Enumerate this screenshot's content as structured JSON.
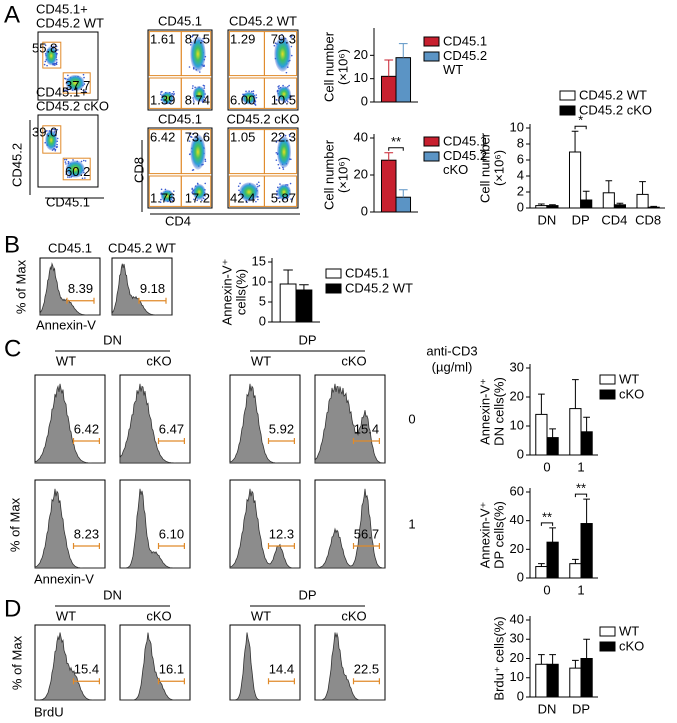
{
  "panel_labels": [
    "A",
    "B",
    "C",
    "D"
  ],
  "flow": {
    "a_left": {
      "x_label": "CD45.1",
      "y_label": "CD45.2",
      "plots": [
        {
          "title": [
            "CD45.1+",
            "CD45.2 WT"
          ],
          "gates": [
            "55.8",
            "37.7"
          ]
        },
        {
          "title": [
            "CD45.1+",
            "CD45.2 cKO"
          ],
          "gates": [
            "39.0",
            "60.2"
          ]
        }
      ]
    },
    "a_mid": {
      "x_label": "CD4",
      "y_label": "CD8",
      "plots": [
        {
          "title": "CD45.1",
          "gates": [
            "1.61",
            "87.5",
            "1.39",
            "8.74"
          ]
        },
        {
          "title": "CD45.2 WT",
          "gates": [
            "1.29",
            "79.3",
            "6.00",
            "10.5"
          ]
        },
        {
          "title": "CD45.1",
          "gates": [
            "6.42",
            "73.6",
            "1.76",
            "17.2"
          ]
        },
        {
          "title": "CD45.2 cKO",
          "gates": [
            "1.05",
            "22.3",
            "42.4",
            "5.87"
          ]
        }
      ]
    },
    "b": {
      "x_label": "Annexin-V",
      "y_label": "% of Max",
      "plots": [
        {
          "title": "CD45.1",
          "gate": "8.39"
        },
        {
          "title": "CD45.2 WT",
          "gate": "9.18"
        }
      ]
    },
    "c": {
      "x_label": "Annexin-V",
      "y_label": "% of Max",
      "groups": [
        "DN",
        "DP"
      ],
      "columns": [
        "WT",
        "cKO",
        "WT",
        "cKO"
      ],
      "dose_title": [
        "anti-CD3",
        "(µg/ml)"
      ],
      "doses": [
        "0",
        "1"
      ],
      "gates": [
        [
          "6.42",
          "6.47",
          "5.92",
          "15.4"
        ],
        [
          "8.23",
          "6.10",
          "12.3",
          "56.7"
        ]
      ]
    },
    "d": {
      "x_label": "BrdU",
      "y_label": "% of Max",
      "groups": [
        "DN",
        "DP"
      ],
      "columns": [
        "WT",
        "cKO",
        "WT",
        "cKO"
      ],
      "gates": [
        "15.4",
        "16.1",
        "14.4",
        "22.5"
      ]
    }
  },
  "chart_data": [
    {
      "type": "bar",
      "y_label": [
        "Cell number",
        "(×10⁶)"
      ],
      "categories": [
        null
      ],
      "ylim": [
        0,
        30
      ],
      "yticks": [
        0,
        10,
        20
      ],
      "series": [
        {
          "name": "CD45.1",
          "color": "#c8202f",
          "values": [
            11
          ],
          "errors": [
            7
          ]
        },
        {
          "name": "CD45.2 WT",
          "color": "#5b94c5",
          "values": [
            19
          ],
          "errors": [
            6
          ]
        }
      ]
    },
    {
      "type": "bar",
      "y_label": [
        "Cell number",
        "(×10⁶)"
      ],
      "categories": [
        null
      ],
      "ylim": [
        0,
        40
      ],
      "yticks": [
        0,
        20,
        40
      ],
      "significance": [
        "**"
      ],
      "series": [
        {
          "name": "CD45.1",
          "color": "#c8202f",
          "values": [
            28
          ],
          "errors": [
            4
          ]
        },
        {
          "name": "CD45.2 cKO",
          "color": "#5b94c5",
          "values": [
            8
          ],
          "errors": [
            4
          ]
        }
      ]
    },
    {
      "type": "bar",
      "y_label": [
        "Cell number",
        "(×10⁶)"
      ],
      "categories": [
        "DN",
        "DP",
        "CD4",
        "CD8"
      ],
      "ylim": [
        0,
        10
      ],
      "yticks": [
        0,
        2,
        4,
        6,
        8,
        10
      ],
      "significance": [
        null,
        "*",
        null,
        null
      ],
      "series": [
        {
          "name": "CD45.2 WT",
          "color": "#ffffff",
          "values": [
            0.3,
            7,
            1.9,
            1.7
          ],
          "errors": [
            0.2,
            2.6,
            1.5,
            1.6
          ]
        },
        {
          "name": "CD45.2 cKO",
          "color": "#000000",
          "values": [
            0.3,
            1,
            0.4,
            0.1
          ],
          "errors": [
            0.1,
            1.1,
            0.2,
            0.1
          ]
        }
      ]
    },
    {
      "type": "bar",
      "y_label": [
        "Annexin-V⁺",
        "cells(%)"
      ],
      "categories": [
        null
      ],
      "ylim": [
        0,
        15
      ],
      "yticks": [
        0,
        5,
        10,
        15
      ],
      "series": [
        {
          "name": "CD45.1",
          "color": "#ffffff",
          "values": [
            9.5
          ],
          "errors": [
            3.5
          ]
        },
        {
          "name": "CD45.2 WT",
          "color": "#000000",
          "values": [
            8
          ],
          "errors": [
            1.3
          ]
        }
      ]
    },
    {
      "type": "bar",
      "y_label": [
        "Annexin-V⁺",
        "DN cells(%)"
      ],
      "categories": [
        "0",
        "1"
      ],
      "ylim": [
        0,
        30
      ],
      "yticks": [
        0,
        10,
        20,
        30
      ],
      "series": [
        {
          "name": "WT",
          "color": "#ffffff",
          "values": [
            14,
            16
          ],
          "errors": [
            7,
            10
          ]
        },
        {
          "name": "cKO",
          "color": "#000000",
          "values": [
            6,
            8
          ],
          "errors": [
            3,
            5
          ]
        }
      ]
    },
    {
      "type": "bar",
      "y_label": [
        "Annexin-V⁺",
        "DP cells(%)"
      ],
      "categories": [
        "0",
        "1"
      ],
      "ylim": [
        0,
        60
      ],
      "yticks": [
        0,
        20,
        40,
        60
      ],
      "significance": [
        "**",
        "**"
      ],
      "series": [
        {
          "color": "#ffffff",
          "values": [
            8,
            10
          ],
          "errors": [
            2,
            3
          ]
        },
        {
          "color": "#000000",
          "values": [
            25,
            38
          ],
          "errors": [
            10,
            17
          ]
        }
      ]
    },
    {
      "type": "bar",
      "y_label": [
        "Brdu⁺ cells(%)"
      ],
      "categories": [
        "DN",
        "DP"
      ],
      "ylim": [
        0,
        40
      ],
      "yticks": [
        0,
        10,
        20,
        30,
        40
      ],
      "series": [
        {
          "name": "WT",
          "color": "#ffffff",
          "values": [
            17,
            15
          ],
          "errors": [
            5,
            4
          ]
        },
        {
          "name": "cKO",
          "color": "#000000",
          "values": [
            17,
            20
          ],
          "errors": [
            5,
            10
          ]
        }
      ]
    }
  ]
}
